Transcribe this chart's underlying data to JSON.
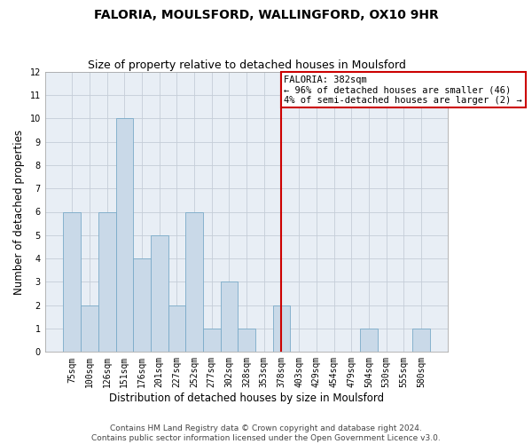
{
  "title": "FALORIA, MOULSFORD, WALLINGFORD, OX10 9HR",
  "subtitle": "Size of property relative to detached houses in Moulsford",
  "xlabel": "Distribution of detached houses by size in Moulsford",
  "ylabel": "Number of detached properties",
  "categories": [
    "75sqm",
    "100sqm",
    "126sqm",
    "151sqm",
    "176sqm",
    "201sqm",
    "227sqm",
    "252sqm",
    "277sqm",
    "302sqm",
    "328sqm",
    "353sqm",
    "378sqm",
    "403sqm",
    "429sqm",
    "454sqm",
    "479sqm",
    "504sqm",
    "530sqm",
    "555sqm",
    "580sqm"
  ],
  "values": [
    6,
    2,
    6,
    10,
    4,
    5,
    2,
    6,
    1,
    3,
    1,
    0,
    2,
    0,
    0,
    0,
    0,
    1,
    0,
    0,
    1
  ],
  "bar_color": "#c9d9e8",
  "bar_edge_color": "#7aaac8",
  "grid_color": "#c5cdd8",
  "background_color": "#e8eef5",
  "annotation_text": "FALORIA: 382sqm\n← 96% of detached houses are smaller (46)\n4% of semi-detached houses are larger (2) →",
  "annotation_box_color": "#cc0000",
  "red_line_index": 12,
  "ylim": [
    0,
    12
  ],
  "yticks": [
    0,
    1,
    2,
    3,
    4,
    5,
    6,
    7,
    8,
    9,
    10,
    11,
    12
  ],
  "footer_line1": "Contains HM Land Registry data © Crown copyright and database right 2024.",
  "footer_line2": "Contains public sector information licensed under the Open Government Licence v3.0.",
  "title_fontsize": 10,
  "subtitle_fontsize": 9,
  "xlabel_fontsize": 8.5,
  "ylabel_fontsize": 8.5,
  "tick_fontsize": 7,
  "annotation_fontsize": 7.5,
  "footer_fontsize": 6.5
}
